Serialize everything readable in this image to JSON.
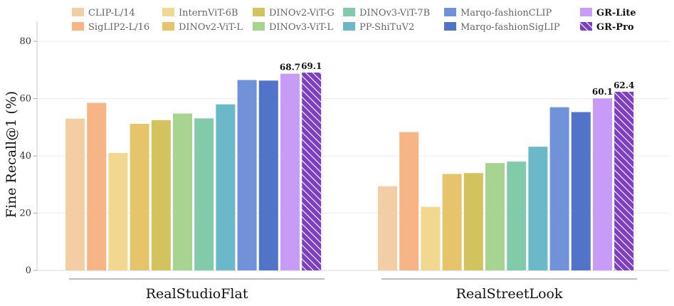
{
  "chart_data": {
    "type": "bar",
    "title": "",
    "xlabel": "",
    "ylabel": "Fine Recall@1 (%)",
    "ylim": [
      0,
      85
    ],
    "yticks": [
      0,
      20,
      40,
      60,
      80
    ],
    "grid": true,
    "legend_position": "top",
    "categories": [
      "RealStudioFlat",
      "RealStreetLook"
    ],
    "series": [
      {
        "name": "CLIP-L/14",
        "color": "#f3cda3",
        "values": [
          53.0,
          29.4
        ]
      },
      {
        "name": "SigLIP2-L/16",
        "color": "#f6b487",
        "values": [
          58.5,
          48.3
        ]
      },
      {
        "name": "InternViT-6B",
        "color": "#f1d78f",
        "values": [
          41.0,
          22.2
        ]
      },
      {
        "name": "DINOv2-ViT-L",
        "color": "#e6c46c",
        "values": [
          51.2,
          33.7
        ]
      },
      {
        "name": "DINOv2-ViT-G",
        "color": "#d2c35f",
        "values": [
          52.5,
          34.0
        ]
      },
      {
        "name": "DINOv3-ViT-L",
        "color": "#a8d492",
        "values": [
          54.8,
          37.5
        ]
      },
      {
        "name": "DINOv3-ViT-7B",
        "color": "#82cbaa",
        "values": [
          53.1,
          38.0
        ]
      },
      {
        "name": "PP-ShiTuV2",
        "color": "#6bb8c8",
        "values": [
          58.0,
          43.2
        ]
      },
      {
        "name": "Marqo-fashionCLIP",
        "color": "#7191d8",
        "values": [
          66.5,
          57.0
        ]
      },
      {
        "name": "Marqo-fashionSigLIP",
        "color": "#5274c8",
        "values": [
          66.3,
          55.3
        ]
      },
      {
        "name": "GR-Lite",
        "color": "#c79bf6",
        "values": [
          68.7,
          60.1
        ],
        "bold": true,
        "show_labels": true
      },
      {
        "name": "GR-Pro",
        "color": "#7d3fbf",
        "values": [
          69.1,
          62.4
        ],
        "bold": true,
        "hatched": true,
        "show_labels": true
      }
    ],
    "data_labels": {
      "GR-Lite": [
        "68.7",
        "60.1"
      ],
      "GR-Pro": [
        "69.1",
        "62.4"
      ]
    },
    "legend_order": [
      "CLIP-L/14",
      "SigLIP2-L/16",
      "InternViT-6B",
      "DINOv2-ViT-L",
      "DINOv2-ViT-G",
      "DINOv3-ViT-L",
      "DINOv3-ViT-7B",
      "PP-ShiTuV2",
      "Marqo-fashionCLIP",
      "Marqo-fashionSigLIP",
      "GR-Lite",
      "GR-Pro"
    ]
  }
}
